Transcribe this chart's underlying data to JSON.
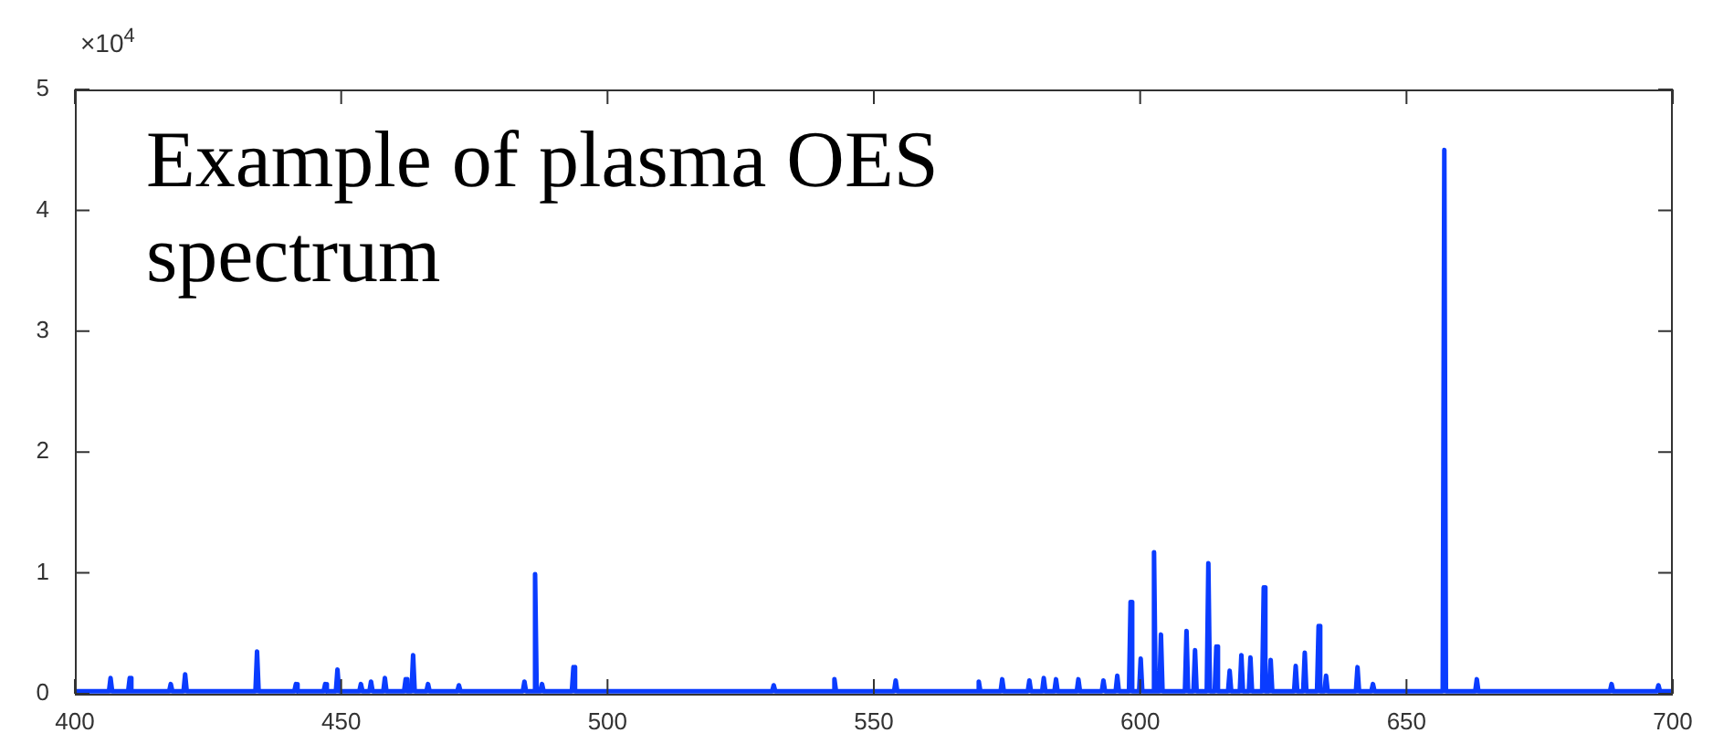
{
  "chart_data": {
    "type": "line",
    "title": "Example of plasma OES spectrum",
    "annotations": [
      "×10$^{4}$"
    ],
    "xlim": [
      400,
      700
    ],
    "xticks": [
      400,
      450,
      500,
      550,
      600,
      650,
      700
    ],
    "ylim": [
      0,
      5
    ],
    "yticks": [
      0,
      1,
      2,
      3,
      4,
      5
    ],
    "grid": false,
    "legend": false,
    "marker": "none",
    "line_style": "solid",
    "series": [
      {
        "color": "#0a3cff",
        "x": [
          400,
          406.4,
          406.7,
          407,
          410,
          410.3,
          410.6,
          417.7,
          418,
          418.3,
          420.4,
          420.7,
          421,
          433.9,
          434.2,
          434.5,
          441.2,
          441.5,
          441.8,
          446.7,
          447,
          447.3,
          449,
          449.3,
          449.6,
          453.4,
          453.7,
          454,
          455.3,
          455.6,
          455.9,
          457.9,
          458.2,
          458.5,
          461.8,
          462.1,
          462.4,
          463.2,
          463.5,
          463.8,
          466,
          466.3,
          466.6,
          471.8,
          472.1,
          472.4,
          484.1,
          484.4,
          484.7,
          486.1,
          486.4,
          486.7,
          487.4,
          487.7,
          488,
          493.3,
          493.6,
          493.9,
          530.9,
          531.2,
          531.5,
          542.3,
          542.6,
          542.9,
          553.8,
          554.1,
          554.4,
          569.4,
          569.7,
          570,
          573.8,
          574.1,
          574.4,
          578.9,
          579.2,
          579.5,
          581.6,
          581.9,
          582.2,
          583.9,
          584.2,
          584.5,
          588.1,
          588.4,
          588.7,
          592.8,
          593.1,
          593.4,
          595.4,
          595.7,
          596,
          597.9,
          598.2,
          598.5,
          599.8,
          600.1,
          600.4,
          602.3,
          602.6,
          602.9,
          603.6,
          603.9,
          604.2,
          608.4,
          608.7,
          609,
          610,
          610.3,
          610.6,
          612.5,
          612.8,
          613.1,
          614,
          614.3,
          614.6,
          616.5,
          616.8,
          617.1,
          618.7,
          619,
          619.3,
          620.4,
          620.7,
          621,
          622.9,
          623.2,
          623.5,
          624.2,
          624.5,
          624.8,
          628.9,
          629.2,
          629.5,
          630.6,
          630.9,
          631.2,
          633.2,
          633.5,
          633.8,
          634.6,
          634.9,
          635.2,
          640.5,
          640.8,
          641.1,
          643.4,
          643.7,
          644,
          656.8,
          657.1,
          657.4,
          662.9,
          663.2,
          663.5,
          688.2,
          688.5,
          688.8,
          697,
          697.3,
          697.6,
          700
        ],
        "values": [
          0.02,
          0.02,
          0.13,
          0.02,
          0.02,
          0.13,
          0.02,
          0.02,
          0.08,
          0.02,
          0.02,
          0.16,
          0.02,
          0.02,
          0.35,
          0.02,
          0.02,
          0.08,
          0.02,
          0.02,
          0.08,
          0.02,
          0.02,
          0.2,
          0.02,
          0.02,
          0.08,
          0.02,
          0.02,
          0.1,
          0.02,
          0.02,
          0.13,
          0.02,
          0.02,
          0.12,
          0.02,
          0.02,
          0.32,
          0.02,
          0.02,
          0.08,
          0.02,
          0.02,
          0.07,
          0.02,
          0.02,
          0.1,
          0.02,
          0.02,
          0.99,
          0.02,
          0.02,
          0.08,
          0.02,
          0.02,
          0.22,
          0.02,
          0.02,
          0.07,
          0.02,
          0.02,
          0.12,
          0.02,
          0.02,
          0.11,
          0.02,
          0.02,
          0.1,
          0.02,
          0.02,
          0.12,
          0.02,
          0.02,
          0.11,
          0.02,
          0.02,
          0.13,
          0.02,
          0.02,
          0.12,
          0.02,
          0.02,
          0.12,
          0.02,
          0.02,
          0.11,
          0.02,
          0.02,
          0.15,
          0.02,
          0.02,
          0.76,
          0.02,
          0.02,
          0.29,
          0.02,
          0.02,
          1.17,
          0.02,
          0.02,
          0.49,
          0.02,
          0.02,
          0.52,
          0.02,
          0.02,
          0.36,
          0.02,
          0.02,
          1.08,
          0.02,
          0.02,
          0.39,
          0.02,
          0.02,
          0.19,
          0.02,
          0.02,
          0.32,
          0.02,
          0.02,
          0.3,
          0.02,
          0.02,
          0.88,
          0.02,
          0.02,
          0.28,
          0.02,
          0.02,
          0.23,
          0.02,
          0.02,
          0.34,
          0.02,
          0.02,
          0.56,
          0.02,
          0.02,
          0.15,
          0.02,
          0.02,
          0.22,
          0.02,
          0.02,
          0.08,
          0.02,
          0.02,
          4.5,
          0.02,
          0.02,
          0.12,
          0.02,
          0.02,
          0.08,
          0.02,
          0.02,
          0.07,
          0.02,
          0.02
        ]
      }
    ]
  }
}
